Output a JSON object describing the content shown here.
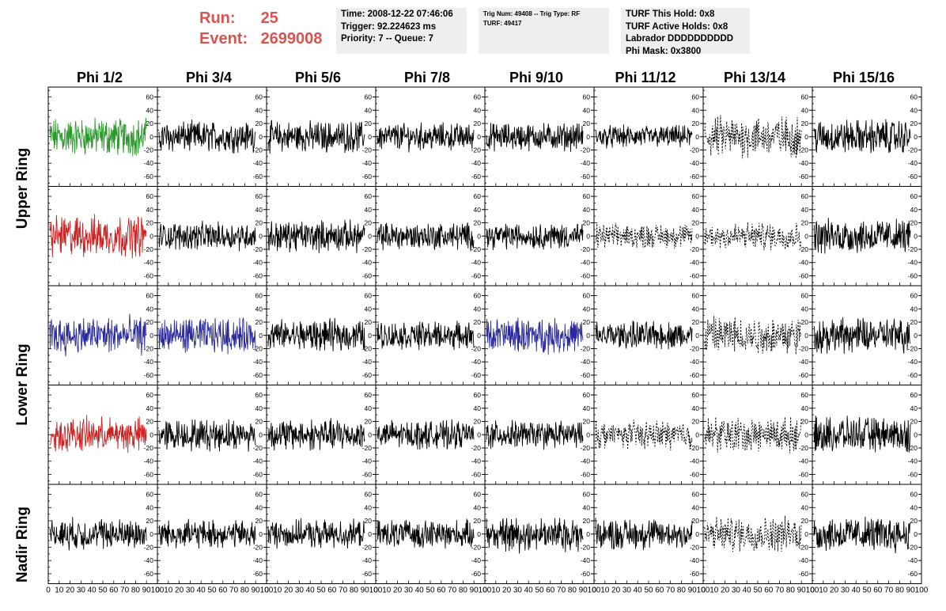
{
  "run_info": {
    "run_label": "Run:",
    "run_value": "25",
    "event_label": "Event:",
    "event_value": "2699008"
  },
  "time_box": {
    "lines": [
      "Time: 2008-12-22 07:46:06",
      "Trigger: 92.224623 ms",
      "Priority: 7 -- Queue: 7"
    ]
  },
  "trig_box": {
    "lines": [
      "Trig Num: 49408 -- Trig Type: RF",
      "",
      "TURF: 49417"
    ]
  },
  "turf_box": {
    "lines": [
      "TURF This Hold: 0x8",
      "TURF Active Holds: 0x8",
      "Labrador DDDDDDDDDD",
      "Phi Mask: 0x3800"
    ]
  },
  "phi_labels": [
    "Phi 1/2",
    "Phi 3/4",
    "Phi 5/6",
    "Phi 7/8",
    "Phi 9/10",
    "Phi 11/12",
    "Phi 13/14",
    "Phi 15/16"
  ],
  "ring_labels": [
    "Upper Ring",
    "Lower Ring",
    "Nadir Ring"
  ],
  "colors": {
    "red": "#cc2222",
    "green": "#2a9a2a",
    "blue": "#2a2a9a",
    "black": "#000000",
    "info_box_bg": "#eeeeee",
    "run_text": "#d9534f"
  },
  "chart_data": {
    "type": "line",
    "rows": 5,
    "cols": 8,
    "ylim": [
      -75,
      75
    ],
    "xlim": [
      0,
      100
    ],
    "y_ticks": [
      -60,
      -40,
      -20,
      0,
      20,
      40,
      60
    ],
    "x_tick_labels": [
      "0",
      "10",
      "20",
      "30",
      "40",
      "50",
      "60",
      "70",
      "80",
      "90",
      "100"
    ],
    "traces": [
      [
        {
          "color": "green",
          "amp": 22,
          "style": "solid"
        },
        {
          "color": "black",
          "amp": 18,
          "style": "solid"
        },
        {
          "color": "black",
          "amp": 18,
          "style": "solid"
        },
        {
          "color": "black",
          "amp": 16,
          "style": "solid"
        },
        {
          "color": "black",
          "amp": 16,
          "style": "solid"
        },
        {
          "color": "black",
          "amp": 13,
          "style": "solid"
        },
        {
          "color": "black",
          "amp": 24,
          "style": "dashed"
        },
        {
          "color": "black",
          "amp": 20,
          "style": "solid"
        }
      ],
      [
        {
          "color": "red",
          "amp": 24,
          "style": "solid"
        },
        {
          "color": "black",
          "amp": 16,
          "style": "solid"
        },
        {
          "color": "black",
          "amp": 18,
          "style": "solid"
        },
        {
          "color": "black",
          "amp": 16,
          "style": "solid"
        },
        {
          "color": "black",
          "amp": 15,
          "style": "solid"
        },
        {
          "color": "black",
          "amp": 14,
          "style": "dashed"
        },
        {
          "color": "black",
          "amp": 16,
          "style": "dashed"
        },
        {
          "color": "black",
          "amp": 20,
          "style": "solid"
        }
      ],
      [
        {
          "color": "blue",
          "amp": 22,
          "style": "solid"
        },
        {
          "color": "blue",
          "amp": 20,
          "style": "solid"
        },
        {
          "color": "black",
          "amp": 18,
          "style": "solid"
        },
        {
          "color": "black",
          "amp": 16,
          "style": "solid"
        },
        {
          "color": "blue",
          "amp": 20,
          "style": "solid"
        },
        {
          "color": "black",
          "amp": 16,
          "style": "solid"
        },
        {
          "color": "black",
          "amp": 22,
          "style": "dashed"
        },
        {
          "color": "black",
          "amp": 20,
          "style": "solid"
        }
      ],
      [
        {
          "color": "red",
          "amp": 20,
          "style": "solid"
        },
        {
          "color": "black",
          "amp": 18,
          "style": "solid"
        },
        {
          "color": "black",
          "amp": 18,
          "style": "solid"
        },
        {
          "color": "black",
          "amp": 16,
          "style": "solid"
        },
        {
          "color": "black",
          "amp": 16,
          "style": "solid"
        },
        {
          "color": "black",
          "amp": 16,
          "style": "dashed"
        },
        {
          "color": "black",
          "amp": 20,
          "style": "dashed"
        },
        {
          "color": "black",
          "amp": 20,
          "style": "solid"
        }
      ],
      [
        {
          "color": "black",
          "amp": 18,
          "style": "solid"
        },
        {
          "color": "black",
          "amp": 16,
          "style": "solid"
        },
        {
          "color": "black",
          "amp": 16,
          "style": "solid"
        },
        {
          "color": "black",
          "amp": 16,
          "style": "solid"
        },
        {
          "color": "black",
          "amp": 20,
          "style": "solid"
        },
        {
          "color": "black",
          "amp": 18,
          "style": "solid"
        },
        {
          "color": "black",
          "amp": 20,
          "style": "dashed"
        },
        {
          "color": "black",
          "amp": 20,
          "style": "solid"
        }
      ]
    ]
  }
}
